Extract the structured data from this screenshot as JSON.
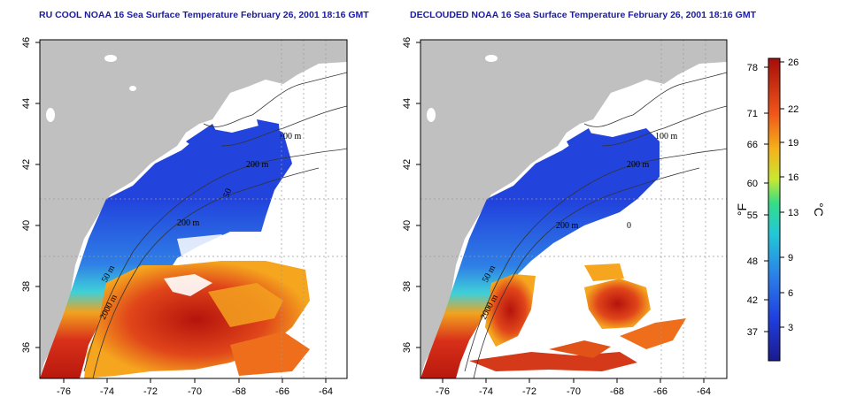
{
  "maps": [
    {
      "id": "left",
      "title": "RU COOL NOAA 16 Sea Surface Temperature February 26, 2001 18:16 GMT",
      "contour_labels": [
        "100 m",
        "200 m",
        "200 m",
        "50 m",
        "2000 m",
        "50"
      ]
    },
    {
      "id": "right",
      "title": "DECLOUDED NOAA 16 Sea Surface Temperature February 26, 2001 18:16 GMT",
      "contour_labels": [
        "100 m",
        "200 m",
        "200 m",
        "50 m",
        "2000 m",
        "0"
      ]
    }
  ],
  "axes": {
    "x_ticks": [
      "-76",
      "-74",
      "-72",
      "-70",
      "-68",
      "-66",
      "-64"
    ],
    "y_ticks": [
      "36",
      "38",
      "40",
      "42",
      "44",
      "46"
    ]
  },
  "colorbar": {
    "fahrenheit_unit": "°F",
    "celsius_unit": "°C",
    "fahrenheit_ticks": [
      "78",
      "71",
      "66",
      "60",
      "55",
      "48",
      "42",
      "37"
    ],
    "celsius_ticks": [
      "26",
      "22",
      "19",
      "16",
      "13",
      "9",
      "6",
      "3"
    ]
  },
  "colors": {
    "land": "#c0c0c0",
    "title": "#1a1aa6",
    "cold": "#2233cc",
    "warm": "#cc2a0a"
  }
}
